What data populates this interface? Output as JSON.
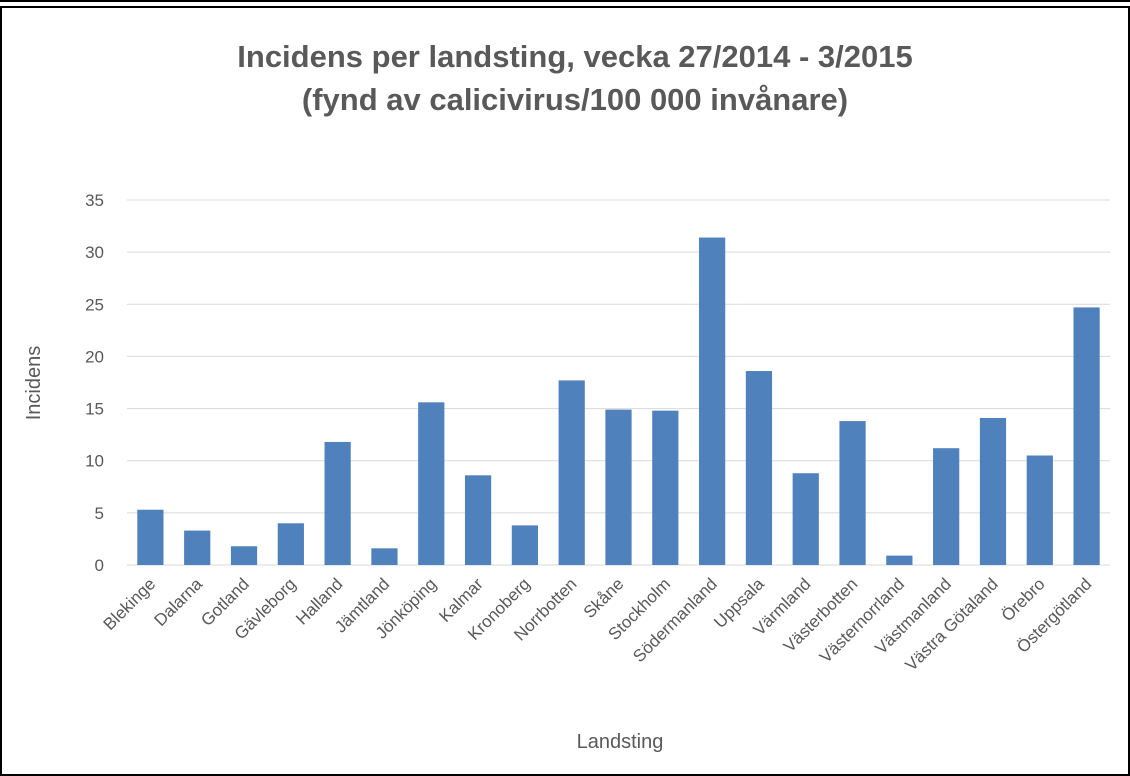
{
  "chart_data": {
    "type": "bar",
    "title": "Incidens per landsting, vecka 27/2014 - 3/2015",
    "subtitle": "(fynd av calicivirus/100 000 invånare)",
    "xlabel": "Landsting",
    "ylabel": "Incidens",
    "ylim": [
      0,
      35
    ],
    "yticks": [
      0,
      5,
      10,
      15,
      20,
      25,
      30,
      35
    ],
    "grid": true,
    "bar_color": "#4f81bd",
    "categories": [
      "Blekinge",
      "Dalarna",
      "Gotland",
      "Gävleborg",
      "Halland",
      "Jämtland",
      "Jönköping",
      "Kalmar",
      "Kronoberg",
      "Norrbotten",
      "Skåne",
      "Stockholm",
      "Södermanland",
      "Uppsala",
      "Värmland",
      "Västerbotten",
      "Västernorrland",
      "Västmanland",
      "Västra Götaland",
      "Örebro",
      "Östergötland"
    ],
    "values": [
      5.3,
      3.3,
      1.8,
      4.0,
      11.8,
      1.6,
      15.6,
      8.6,
      3.8,
      17.7,
      14.9,
      14.8,
      31.4,
      18.6,
      8.8,
      13.8,
      0.9,
      11.2,
      14.1,
      10.5,
      24.7
    ]
  }
}
